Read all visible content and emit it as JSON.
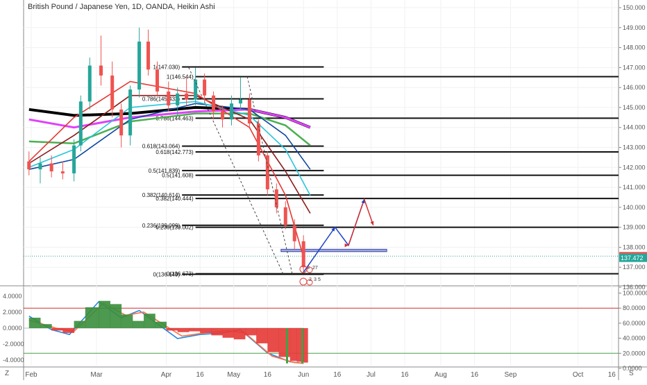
{
  "header": {
    "title": "British Pound / Japanese Yen, 1D, OANDA, Heikin Ashi"
  },
  "corner": {
    "left_label": "Z",
    "right_label": "S"
  },
  "chart_data": [
    {
      "type": "candlestick",
      "title": "British Pound / Japanese Yen, 1D, OANDA, Heikin Ashi",
      "y_axis": {
        "ylim": [
          135.5,
          150.3
        ],
        "position": "right",
        "ticks": [
          "150.000",
          "149.000",
          "148.000",
          "147.000",
          "146.000",
          "145.000",
          "144.000",
          "143.000",
          "142.000",
          "141.000",
          "140.000",
          "139.000",
          "138.000",
          "137.000",
          "136.000"
        ]
      },
      "x_axis": {
        "ticks": [
          {
            "date": "2020-02-01",
            "label": "Feb"
          },
          {
            "date": "2020-03-01",
            "label": "Mar"
          },
          {
            "date": "2020-04-01",
            "label": "Apr"
          },
          {
            "date": "2020-04-16",
            "label": "16"
          },
          {
            "date": "2020-05-01",
            "label": "May"
          },
          {
            "date": "2020-05-16",
            "label": "16"
          },
          {
            "date": "2020-06-01",
            "label": "Jun"
          },
          {
            "date": "2020-06-16",
            "label": "16"
          },
          {
            "date": "2020-07-01",
            "label": "Jul"
          },
          {
            "date": "2020-07-16",
            "label": "16"
          },
          {
            "date": "2020-08-01",
            "label": "Aug"
          },
          {
            "date": "2020-08-16",
            "label": "16"
          },
          {
            "date": "2020-09-01",
            "label": "Sep"
          },
          {
            "date": "2020-10-01",
            "label": "Oct"
          },
          {
            "date": "2020-10-16",
            "label": "16"
          }
        ]
      },
      "colors": {
        "up": "#26a69a",
        "down": "#ef5350"
      },
      "candles": [
        {
          "date": "2020-01-31",
          "open": 142.3,
          "high": 142.8,
          "low": 141.6,
          "close": 141.9
        },
        {
          "date": "2020-02-05",
          "open": 141.9,
          "high": 142.5,
          "low": 141.2,
          "close": 142.2
        },
        {
          "date": "2020-02-10",
          "open": 142.2,
          "high": 142.6,
          "low": 141.5,
          "close": 141.8
        },
        {
          "date": "2020-02-15",
          "open": 141.8,
          "high": 142.3,
          "low": 141.4,
          "close": 141.7
        },
        {
          "date": "2020-02-20",
          "open": 141.7,
          "high": 143.4,
          "low": 141.3,
          "close": 143.1
        },
        {
          "date": "2020-02-23",
          "open": 143.1,
          "high": 145.6,
          "low": 142.8,
          "close": 145.3
        },
        {
          "date": "2020-02-27",
          "open": 145.3,
          "high": 147.5,
          "low": 144.9,
          "close": 147.1
        },
        {
          "date": "2020-03-03",
          "open": 147.1,
          "high": 148.6,
          "low": 146.1,
          "close": 146.6
        },
        {
          "date": "2020-03-08",
          "open": 146.6,
          "high": 147.3,
          "low": 144.5,
          "close": 144.9
        },
        {
          "date": "2020-03-12",
          "open": 144.9,
          "high": 145.2,
          "low": 143.0,
          "close": 143.6
        },
        {
          "date": "2020-03-16",
          "open": 143.6,
          "high": 146.1,
          "low": 143.1,
          "close": 145.9
        },
        {
          "date": "2020-03-20",
          "open": 145.9,
          "high": 149.0,
          "low": 145.5,
          "close": 148.3
        },
        {
          "date": "2020-03-24",
          "open": 148.3,
          "high": 148.9,
          "low": 146.6,
          "close": 146.9
        },
        {
          "date": "2020-03-28",
          "open": 146.9,
          "high": 147.3,
          "low": 145.6,
          "close": 145.8
        },
        {
          "date": "2020-04-02",
          "open": 145.8,
          "high": 146.3,
          "low": 144.8,
          "close": 145.1
        },
        {
          "date": "2020-04-06",
          "open": 145.1,
          "high": 146.0,
          "low": 144.6,
          "close": 145.7
        },
        {
          "date": "2020-04-10",
          "open": 145.7,
          "high": 146.5,
          "low": 145.1,
          "close": 145.4
        },
        {
          "date": "2020-04-14",
          "open": 145.4,
          "high": 147.0,
          "low": 145.1,
          "close": 146.4
        },
        {
          "date": "2020-04-18",
          "open": 146.4,
          "high": 146.7,
          "low": 145.3,
          "close": 145.6
        },
        {
          "date": "2020-04-22",
          "open": 145.6,
          "high": 145.8,
          "low": 144.4,
          "close": 144.8
        },
        {
          "date": "2020-04-26",
          "open": 144.8,
          "high": 145.1,
          "low": 144.0,
          "close": 144.4
        },
        {
          "date": "2020-04-30",
          "open": 144.4,
          "high": 145.6,
          "low": 144.1,
          "close": 145.2
        },
        {
          "date": "2020-05-04",
          "open": 145.2,
          "high": 146.5,
          "low": 144.9,
          "close": 145.4
        },
        {
          "date": "2020-05-08",
          "open": 145.4,
          "high": 145.7,
          "low": 144.0,
          "close": 144.2
        },
        {
          "date": "2020-05-12",
          "open": 144.2,
          "high": 144.4,
          "low": 142.3,
          "close": 142.6
        },
        {
          "date": "2020-05-16",
          "open": 142.6,
          "high": 142.8,
          "low": 140.6,
          "close": 140.9
        },
        {
          "date": "2020-05-20",
          "open": 140.9,
          "high": 141.2,
          "low": 139.7,
          "close": 140.0
        },
        {
          "date": "2020-05-24",
          "open": 140.0,
          "high": 140.3,
          "low": 138.9,
          "close": 139.1
        },
        {
          "date": "2020-05-28",
          "open": 139.1,
          "high": 139.4,
          "low": 137.9,
          "close": 138.3
        },
        {
          "date": "2020-06-01",
          "open": 138.3,
          "high": 138.6,
          "low": 136.7,
          "close": 137.0
        }
      ],
      "moving_averages": [
        {
          "color": "#000000",
          "points": [
            [
              "2020-01-31",
              144.9
            ],
            [
              "2020-02-20",
              144.6
            ],
            [
              "2020-03-16",
              144.7
            ],
            [
              "2020-04-14",
              145.0
            ],
            [
              "2020-05-08",
              144.9
            ],
            [
              "2020-05-24",
              144.5
            ],
            [
              "2020-06-04",
              144.0
            ]
          ]
        },
        {
          "color": "#e040fb",
          "points": [
            [
              "2020-01-31",
              144.4
            ],
            [
              "2020-02-20",
              144.0
            ],
            [
              "2020-03-16",
              144.5
            ],
            [
              "2020-04-14",
              144.8
            ],
            [
              "2020-05-08",
              144.9
            ],
            [
              "2020-05-24",
              144.5
            ],
            [
              "2020-06-04",
              144.0
            ]
          ]
        },
        {
          "color": "#4caf50",
          "points": [
            [
              "2020-01-31",
              143.3
            ],
            [
              "2020-02-20",
              143.2
            ],
            [
              "2020-03-16",
              144.3
            ],
            [
              "2020-04-14",
              144.7
            ],
            [
              "2020-05-08",
              144.7
            ],
            [
              "2020-05-24",
              144.1
            ],
            [
              "2020-06-04",
              143.1
            ]
          ]
        },
        {
          "color": "#0d47a1",
          "points": [
            [
              "2020-01-31",
              141.9
            ],
            [
              "2020-02-20",
              142.4
            ],
            [
              "2020-03-16",
              144.4
            ],
            [
              "2020-04-14",
              145.2
            ],
            [
              "2020-05-08",
              144.9
            ],
            [
              "2020-05-24",
              143.6
            ],
            [
              "2020-06-04",
              141.9
            ]
          ]
        },
        {
          "color": "#26c6da",
          "points": [
            [
              "2020-01-31",
              142.0
            ],
            [
              "2020-02-20",
              142.9
            ],
            [
              "2020-03-16",
              145.0
            ],
            [
              "2020-04-14",
              145.3
            ],
            [
              "2020-05-08",
              144.6
            ],
            [
              "2020-05-24",
              142.9
            ],
            [
              "2020-06-04",
              140.6
            ]
          ]
        },
        {
          "color": "#8b1a1a",
          "points": [
            [
              "2020-01-31",
              142.2
            ],
            [
              "2020-02-20",
              143.6
            ],
            [
              "2020-03-16",
              145.6
            ],
            [
              "2020-04-14",
              145.6
            ],
            [
              "2020-05-08",
              144.4
            ],
            [
              "2020-05-24",
              141.8
            ],
            [
              "2020-06-04",
              139.7
            ]
          ]
        },
        {
          "color": "#e53935",
          "points": [
            [
              "2020-01-31",
              142.3
            ],
            [
              "2020-02-20",
              144.5
            ],
            [
              "2020-03-16",
              146.3
            ],
            [
              "2020-04-14",
              145.7
            ],
            [
              "2020-05-08",
              144.0
            ],
            [
              "2020-05-24",
              140.6
            ],
            [
              "2020-06-01",
              137.5
            ]
          ]
        }
      ],
      "fibonacci": [
        {
          "start": "2020-04-08",
          "end": "2020-06-10",
          "label_at": "2020-04-08",
          "levels": [
            {
              "label": "1(147.030)",
              "value": 147.03
            },
            {
              "label": "0.786(145.433)",
              "value": 145.433
            },
            {
              "label": "0.618(143.064)",
              "value": 143.064
            },
            {
              "label": "0.5(141.839)",
              "value": 141.839
            },
            {
              "label": "0.382(140.614)",
              "value": 140.614
            },
            {
              "label": "0.236(139.099)",
              "value": 139.099
            },
            {
              "label": "0(136.649)",
              "value": 136.649
            }
          ]
        },
        {
          "start": "2020-04-14",
          "end": "2020-10-31",
          "label_at": "2020-04-14",
          "levels": [
            {
              "label": "1(146.544)",
              "value": 146.544
            },
            {
              "label": "0.786(144.463)",
              "value": 144.463
            },
            {
              "label": "0.618(142.773)",
              "value": 142.773
            },
            {
              "label": "0.5(141.608)",
              "value": 141.608
            },
            {
              "label": "0.382(140.444)",
              "value": 140.444
            },
            {
              "label": "0.236(139.002)",
              "value": 139.002
            },
            {
              "label": "0(136.673)",
              "value": 136.673
            }
          ]
        }
      ],
      "annotations": {
        "dashed_trend_lines": [
          {
            "from": [
              "2020-04-11",
              147.0
            ],
            "to": [
              "2020-05-23",
              136.65
            ]
          },
          {
            "from": [
              "2020-05-07",
              146.54
            ],
            "to": [
              "2020-05-27",
              136.67
            ]
          }
        ],
        "blue_path": [
          [
            "2020-06-01",
            136.75
          ],
          [
            "2020-06-15",
            139.0
          ],
          [
            "2020-06-21",
            138.1
          ],
          [
            "2020-06-28",
            140.4
          ]
        ],
        "red_path": [
          [
            "2020-06-21",
            138.1
          ],
          [
            "2020-06-28",
            140.4
          ],
          [
            "2020-07-02",
            139.1
          ]
        ],
        "zone": {
          "from": "2020-05-22",
          "to": "2020-07-08",
          "top": 137.9,
          "bottom": 137.78
        },
        "current_price_line": 137.556,
        "marker_texts": [
          "3",
          "27",
          "2",
          "3",
          "5"
        ]
      },
      "price_labels": [
        {
          "value": 137.556,
          "label": "137.556",
          "color": "#ef5350"
        },
        {
          "value": 137.472,
          "label": "137.472",
          "color": "#26a69a"
        }
      ]
    },
    {
      "type": "oscillator",
      "left_axis": {
        "ylim": [
          -4.6,
          4.6
        ],
        "ticks": [
          "4.0000",
          "2.0000",
          "0.0000",
          "-2.0000",
          "-4.0000"
        ]
      },
      "right_axis": {
        "ylim": [
          0,
          100
        ],
        "ticks": [
          "100.0000",
          "80.0000",
          "60.0000",
          "40.0000",
          "20.0000",
          "0.0000"
        ]
      },
      "histogram": [
        {
          "date": "2020-01-31",
          "value": 1.3
        },
        {
          "date": "2020-02-05",
          "value": 0.5
        },
        {
          "date": "2020-02-10",
          "value": -0.3
        },
        {
          "date": "2020-02-15",
          "value": -0.6
        },
        {
          "date": "2020-02-20",
          "value": 0.9
        },
        {
          "date": "2020-02-25",
          "value": 2.6
        },
        {
          "date": "2020-03-02",
          "value": 3.4
        },
        {
          "date": "2020-03-07",
          "value": 3.0
        },
        {
          "date": "2020-03-12",
          "value": 1.7
        },
        {
          "date": "2020-03-17",
          "value": 0.9
        },
        {
          "date": "2020-03-22",
          "value": 1.8
        },
        {
          "date": "2020-03-27",
          "value": 0.8
        },
        {
          "date": "2020-04-01",
          "value": -0.3
        },
        {
          "date": "2020-04-06",
          "value": -0.5
        },
        {
          "date": "2020-04-11",
          "value": -0.4
        },
        {
          "date": "2020-04-16",
          "value": -0.6
        },
        {
          "date": "2020-04-21",
          "value": -0.9
        },
        {
          "date": "2020-04-26",
          "value": -1.2
        },
        {
          "date": "2020-05-01",
          "value": -1.4
        },
        {
          "date": "2020-05-06",
          "value": -0.9
        },
        {
          "date": "2020-05-11",
          "value": -1.9
        },
        {
          "date": "2020-05-16",
          "value": -3.0
        },
        {
          "date": "2020-05-21",
          "value": -3.6
        },
        {
          "date": "2020-05-26",
          "value": -4.1
        },
        {
          "date": "2020-05-29",
          "value": -4.2
        },
        {
          "date": "2020-06-01",
          "value": -4.3
        }
      ],
      "lines": [
        {
          "color": "#1e88e5",
          "points": [
            [
              "2020-01-31",
              1.5
            ],
            [
              "2020-02-10",
              -0.2
            ],
            [
              "2020-02-18",
              -0.8
            ],
            [
              "2020-03-02",
              3.3
            ],
            [
              "2020-03-12",
              1.3
            ],
            [
              "2020-03-20",
              2.2
            ],
            [
              "2020-04-06",
              -1.3
            ],
            [
              "2020-04-16",
              -0.8
            ],
            [
              "2020-04-26",
              -0.6
            ],
            [
              "2020-05-04",
              -0.2
            ],
            [
              "2020-05-16",
              -3.1
            ],
            [
              "2020-05-26",
              -4.2
            ],
            [
              "2020-06-01",
              -4.4
            ]
          ]
        },
        {
          "color": "#ff7043",
          "points": [
            [
              "2020-01-31",
              1.0
            ],
            [
              "2020-02-12",
              0.0
            ],
            [
              "2020-02-20",
              -0.4
            ],
            [
              "2020-03-04",
              3.1
            ],
            [
              "2020-03-14",
              1.6
            ],
            [
              "2020-03-22",
              2.0
            ],
            [
              "2020-04-08",
              -1.0
            ],
            [
              "2020-04-18",
              -0.6
            ],
            [
              "2020-04-28",
              -0.3
            ],
            [
              "2020-05-06",
              -0.6
            ],
            [
              "2020-05-18",
              -3.5
            ],
            [
              "2020-05-28",
              -4.3
            ],
            [
              "2020-06-01",
              -4.4
            ]
          ]
        }
      ],
      "levels": [
        {
          "scale": "right",
          "value": 80,
          "color": "#d32f2f"
        },
        {
          "scale": "right",
          "value": 20,
          "color": "#43a047"
        }
      ]
    }
  ]
}
